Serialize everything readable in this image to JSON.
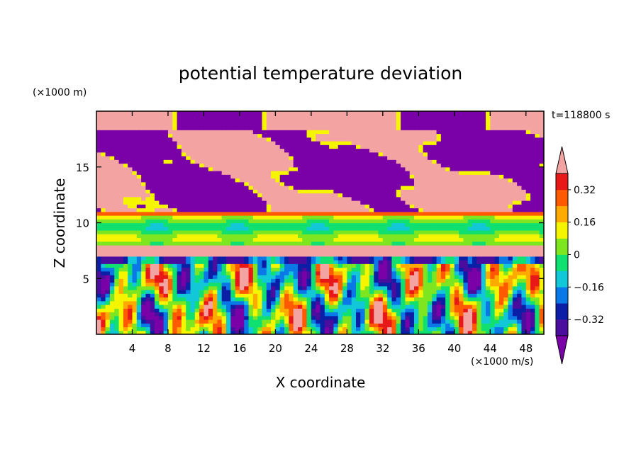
{
  "chart_data": {
    "type": "heatmap",
    "title": "potential temperature deviation",
    "xlabel": "X coordinate",
    "ylabel": "Z coordinate",
    "x_unit_label": "(×1000 m/s)",
    "y_unit_label": "(×1000 m)",
    "time_label": "t=118800 s",
    "xlim": [
      0,
      50
    ],
    "ylim": [
      0,
      20
    ],
    "x_ticks": [
      4,
      8,
      12,
      16,
      20,
      24,
      28,
      32,
      36,
      40,
      44,
      48
    ],
    "y_ticks": [
      5,
      10,
      15
    ],
    "colorbar": {
      "levels": [
        -0.4,
        -0.32,
        -0.24,
        -0.16,
        -0.08,
        0,
        0.08,
        0.16,
        0.24,
        0.32,
        0.4
      ],
      "tick_labels": [
        "0.32",
        "0.16",
        "0",
        "−0.16",
        "−0.32"
      ],
      "tick_values": [
        0.32,
        0.16,
        0,
        -0.16,
        -0.32
      ],
      "colors": [
        "#7a00a8",
        "#4a0d9e",
        "#0b1ea6",
        "#0a78e6",
        "#12c8d8",
        "#10e070",
        "#7de620",
        "#f5f500",
        "#ffaa00",
        "#ff5a00",
        "#e81818",
        "#f4a3a3"
      ],
      "extend": "both"
    },
    "grid": false
  }
}
